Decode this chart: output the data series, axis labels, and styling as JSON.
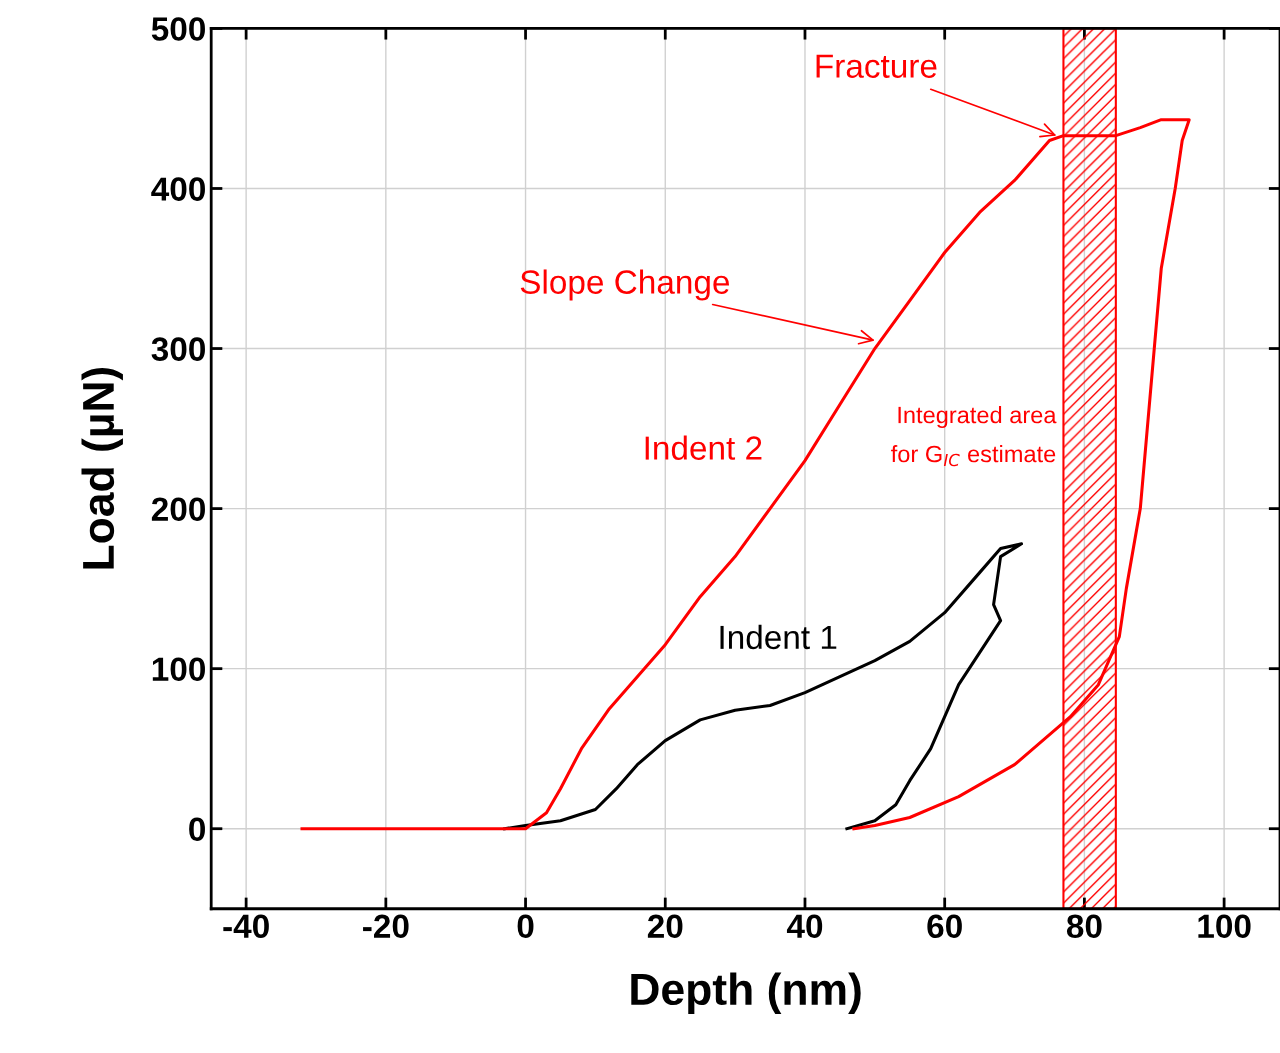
{
  "chart_data": {
    "type": "line",
    "xlabel": "Depth (nm)",
    "ylabel": "Load (µN)",
    "xlim": [
      -45,
      108
    ],
    "ylim": [
      -50,
      500
    ],
    "xticks": [
      -40,
      -20,
      0,
      20,
      40,
      60,
      80,
      100
    ],
    "yticks": [
      0,
      100,
      200,
      300,
      400,
      500
    ],
    "grid": true,
    "legend": false,
    "marker": "none",
    "line_style": "solid",
    "series": [
      {
        "name": "Indent 1",
        "color": "#000000",
        "x": [
          -3,
          0,
          5,
          10,
          13,
          16,
          20,
          25,
          30,
          35,
          40,
          45,
          50,
          55,
          60,
          65,
          68,
          71,
          68,
          67,
          68,
          65,
          62,
          60,
          58,
          55,
          53,
          50,
          46
        ],
        "values": [
          0,
          2,
          5,
          12,
          25,
          40,
          55,
          68,
          74,
          77,
          85,
          95,
          105,
          117,
          135,
          160,
          175,
          178,
          170,
          140,
          130,
          110,
          90,
          70,
          50,
          30,
          15,
          5,
          0
        ]
      },
      {
        "name": "Indent 2",
        "color": "#ff0000",
        "x": [
          -32,
          -10,
          0,
          3,
          5,
          8,
          12,
          17,
          20,
          25,
          30,
          35,
          40,
          45,
          50,
          55,
          60,
          65,
          70,
          75,
          77,
          84.5,
          88,
          91,
          95,
          94,
          93,
          91,
          90,
          89,
          88,
          86,
          85,
          82,
          78,
          70,
          62,
          55,
          50,
          47
        ],
        "values": [
          0,
          0,
          0,
          10,
          25,
          50,
          75,
          100,
          115,
          145,
          170,
          200,
          230,
          265,
          300,
          330,
          360,
          385,
          405,
          430,
          433,
          433,
          438,
          443,
          443,
          430,
          400,
          350,
          300,
          250,
          200,
          150,
          120,
          90,
          70,
          40,
          20,
          7,
          2,
          0
        ]
      }
    ],
    "bands": [
      {
        "axis": "x",
        "from": 77,
        "to": 84.5,
        "label": "Integrated area\nfor G$_{IC}$ estimate",
        "color": "#ff0000"
      }
    ],
    "annotations": [
      {
        "text": "Fracture",
        "x": 76,
        "y": 433
      },
      {
        "text": "Slope Change",
        "x": 50,
        "y": 305
      }
    ]
  }
}
